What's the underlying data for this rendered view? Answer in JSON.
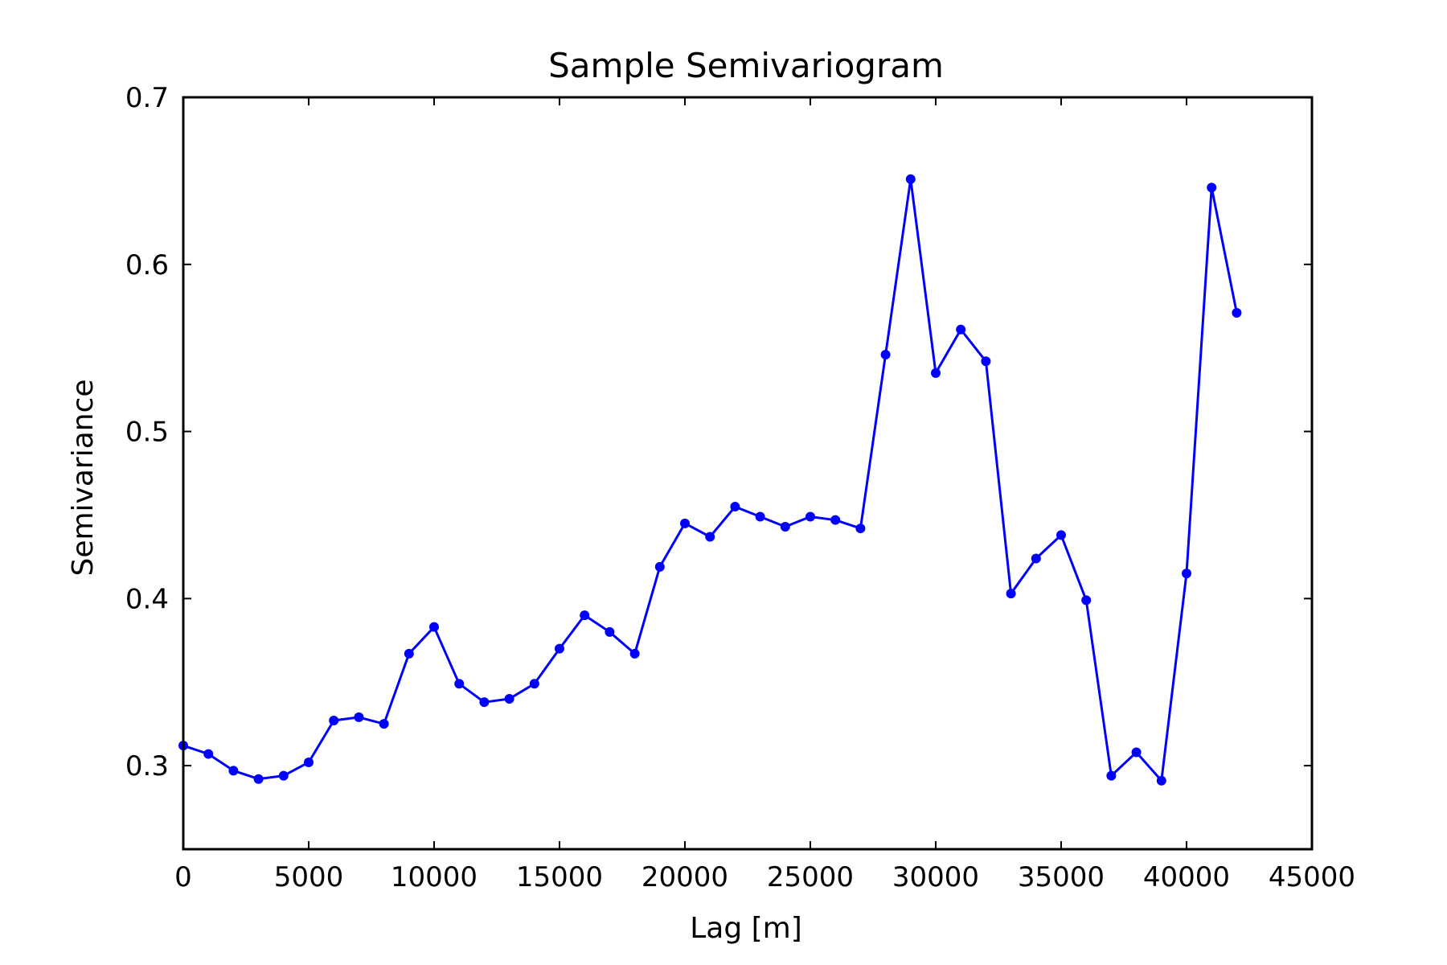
{
  "chart_data": {
    "type": "line",
    "title": "Sample Semivariogram",
    "xlabel": "Lag [m]",
    "ylabel": "Semivariance",
    "xlim": [
      0,
      45000
    ],
    "ylim": [
      0.25,
      0.7
    ],
    "xticks": [
      0,
      5000,
      10000,
      15000,
      20000,
      25000,
      30000,
      35000,
      40000,
      45000
    ],
    "yticks": [
      0.3,
      0.4,
      0.5,
      0.6,
      0.7
    ],
    "grid": false,
    "line_color": "#0000ff",
    "marker": "circle",
    "series": [
      {
        "x": [
          0,
          1000,
          2000,
          3000,
          4000,
          5000,
          6000,
          7000,
          8000,
          9000,
          10000,
          11000,
          12000,
          13000,
          14000,
          15000,
          16000,
          17000,
          18000,
          19000,
          20000,
          21000,
          22000,
          23000,
          24000,
          25000,
          26000,
          27000,
          28000,
          29000,
          30000,
          31000,
          32000,
          33000,
          34000,
          35000,
          36000,
          37000,
          38000,
          39000,
          40000,
          41000,
          42000
        ],
        "y": [
          0.312,
          0.307,
          0.297,
          0.292,
          0.294,
          0.302,
          0.327,
          0.329,
          0.325,
          0.367,
          0.383,
          0.349,
          0.338,
          0.34,
          0.349,
          0.37,
          0.39,
          0.38,
          0.367,
          0.419,
          0.445,
          0.437,
          0.455,
          0.449,
          0.443,
          0.449,
          0.447,
          0.442,
          0.546,
          0.651,
          0.535,
          0.561,
          0.542,
          0.403,
          0.424,
          0.438,
          0.399,
          0.294,
          0.308,
          0.291,
          0.415,
          0.646,
          0.571
        ]
      }
    ]
  }
}
